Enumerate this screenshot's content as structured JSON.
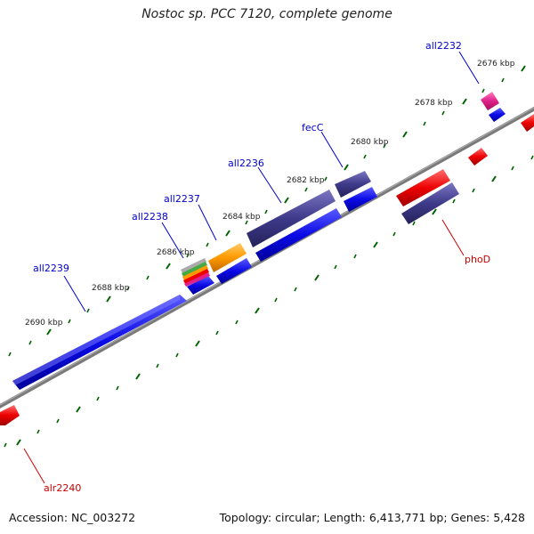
{
  "title": "Nostoc sp. PCC 7120, complete genome",
  "footer": {
    "accession": "Accession: NC_003272",
    "summary": "Topology: circular; Length: 6,413,771 bp; Genes: 5,428"
  },
  "kbp_labels": [
    "2676 kbp",
    "2678 kbp",
    "2680 kbp",
    "2682 kbp",
    "2684 kbp",
    "2686 kbp",
    "2688 kbp",
    "2690 kbp"
  ],
  "gene_labels": {
    "all2232": "all2232",
    "fecC": "fecC",
    "all2236": "all2236",
    "all2237": "all2237",
    "all2238": "all2238",
    "all2239": "all2239",
    "phoD": "phoD",
    "alr2240": "alr2240"
  },
  "colors": {
    "minus_strand_label": "#0000cc",
    "plus_strand_label": "#cc0000",
    "blue_gene": "#0a0ae6",
    "navy_gene": "#3e3a8a",
    "red_gene": "#ee0000",
    "magenta_gene": "#e0208a",
    "orange_gene": "#ff9900",
    "tick_green": "#006400",
    "backbone": "#808080"
  }
}
